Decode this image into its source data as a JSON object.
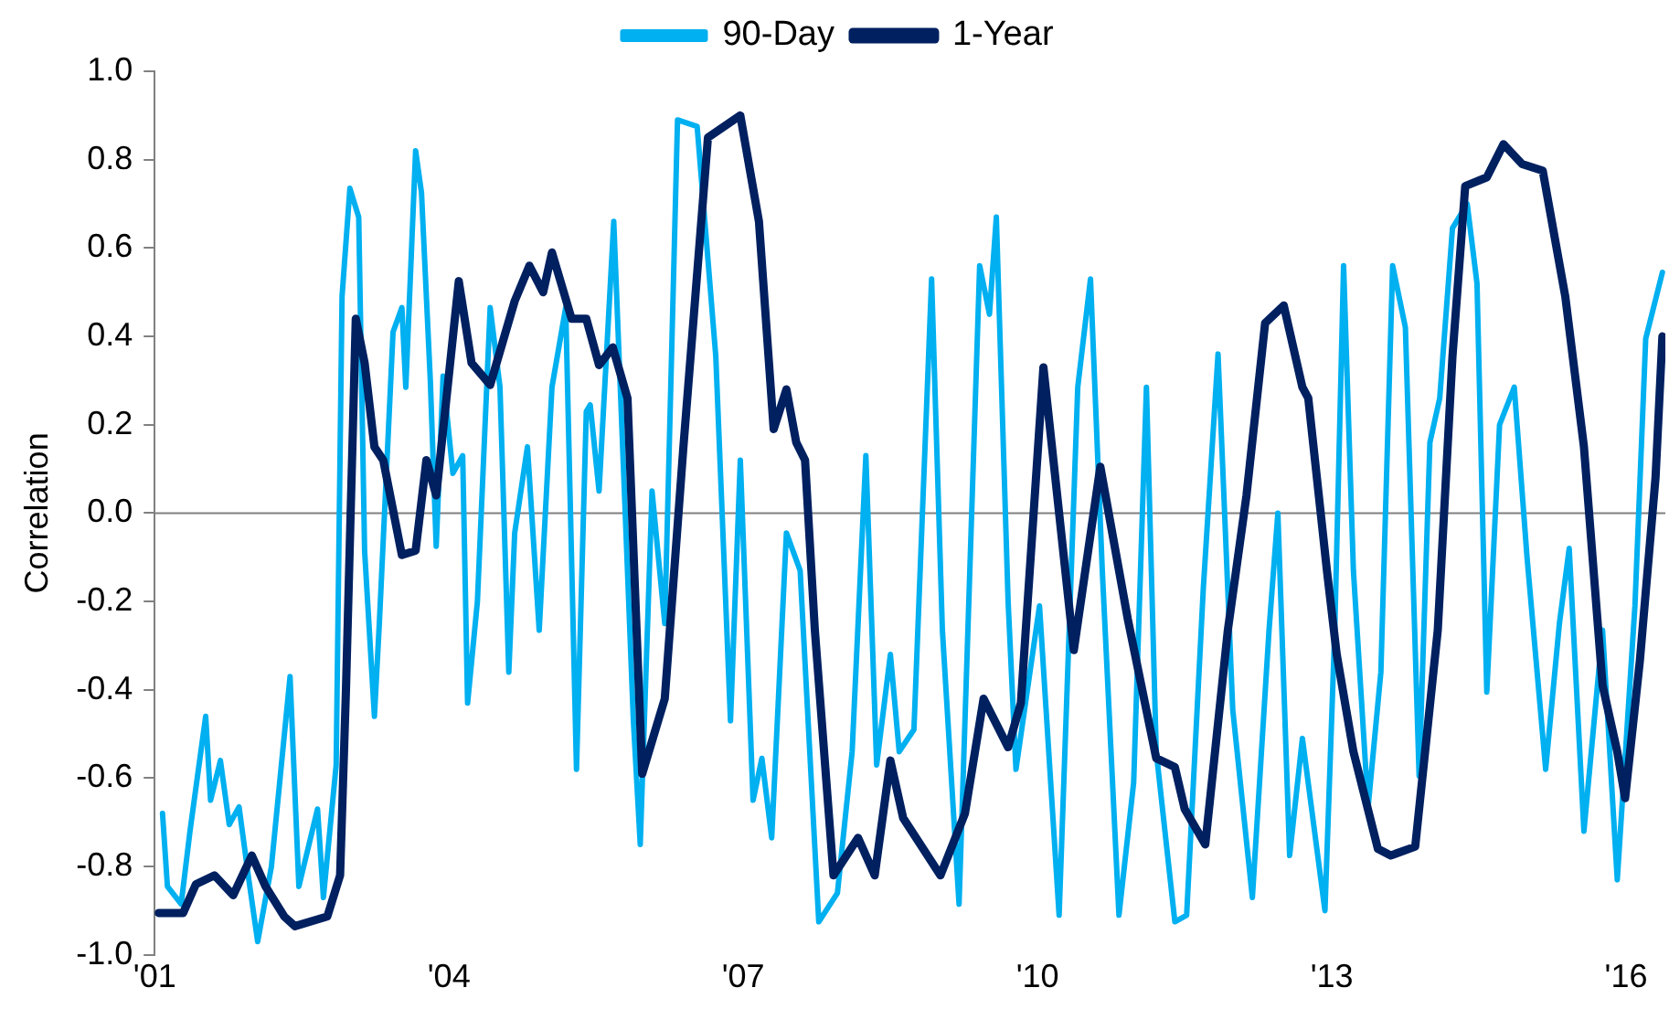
{
  "chart_data": {
    "type": "line",
    "ylabel": "Correlation",
    "legend": "top",
    "marker": "none",
    "line_style": "solid",
    "grid": false,
    "xlim": [
      2001,
      2016.4
    ],
    "xticks": [
      {
        "value": 2001,
        "label": "'01"
      },
      {
        "value": 2004,
        "label": "'04"
      },
      {
        "value": 2007,
        "label": "'07"
      },
      {
        "value": 2010,
        "label": "'10"
      },
      {
        "value": 2013,
        "label": "'13"
      },
      {
        "value": 2016,
        "label": "'16"
      }
    ],
    "ylim": [
      -1,
      1
    ],
    "yticks": [
      {
        "value": -1,
        "label": "-1.0"
      },
      {
        "value": -0.8,
        "label": "-0.8"
      },
      {
        "value": -0.6,
        "label": "-0.6"
      },
      {
        "value": -0.4,
        "label": "-0.4"
      },
      {
        "value": -0.2,
        "label": "-0.2"
      },
      {
        "value": 0,
        "label": "0.0"
      },
      {
        "value": 0.2,
        "label": "0.2"
      },
      {
        "value": 0.4,
        "label": "0.4"
      },
      {
        "value": 0.6,
        "label": "0.6"
      },
      {
        "value": 0.8,
        "label": "0.8"
      },
      {
        "value": 1,
        "label": "1.0"
      }
    ],
    "ref_lines": [
      {
        "axis": "y",
        "value": 0,
        "color": "#808080"
      }
    ],
    "series": [
      {
        "name": "90-Day",
        "color": "#00b0f0",
        "x": [
          2001.08,
          2001.13,
          2001.27,
          2001.36,
          2001.52,
          2001.57,
          2001.67,
          2001.76,
          2001.86,
          2001.96,
          2002.05,
          2002.19,
          2002.38,
          2002.47,
          2002.66,
          2002.72,
          2002.85,
          2002.91,
          2002.99,
          2003.08,
          2003.14,
          2003.24,
          2003.29,
          2003.43,
          2003.52,
          2003.56,
          2003.66,
          2003.72,
          2003.81,
          2003.87,
          2003.94,
          2004.04,
          2004.14,
          2004.19,
          2004.29,
          2004.42,
          2004.52,
          2004.61,
          2004.67,
          2004.8,
          2004.92,
          2005.05,
          2005.19,
          2005.3,
          2005.4,
          2005.44,
          2005.53,
          2005.68,
          2005.88,
          2005.95,
          2006.07,
          2006.2,
          2006.33,
          2006.53,
          2006.72,
          2006.87,
          2006.97,
          2007.1,
          2007.19,
          2007.29,
          2007.44,
          2007.58,
          2007.77,
          2007.96,
          2008.11,
          2008.25,
          2008.36,
          2008.5,
          2008.59,
          2008.74,
          2008.92,
          2009.03,
          2009.2,
          2009.41,
          2009.51,
          2009.58,
          2009.7,
          2009.78,
          2010.02,
          2010.22,
          2010.41,
          2010.54,
          2010.66,
          2010.83,
          2010.98,
          2011.11,
          2011.21,
          2011.4,
          2011.52,
          2011.69,
          2011.84,
          2011.99,
          2012.19,
          2012.36,
          2012.45,
          2012.57,
          2012.7,
          2012.93,
          2013.03,
          2013.12,
          2013.22,
          2013.37,
          2013.5,
          2013.62,
          2013.75,
          2013.89,
          2014.0,
          2014.1,
          2014.23,
          2014.38,
          2014.48,
          2014.58,
          2014.71,
          2014.86,
          2014.99,
          2015.18,
          2015.32,
          2015.42,
          2015.57,
          2015.76,
          2015.91,
          2016.09,
          2016.2,
          2016.37
        ],
        "values": [
          -0.68,
          -0.845,
          -0.885,
          -0.72,
          -0.46,
          -0.65,
          -0.56,
          -0.705,
          -0.665,
          -0.83,
          -0.97,
          -0.8,
          -0.37,
          -0.845,
          -0.67,
          -0.87,
          -0.57,
          0.49,
          0.735,
          0.67,
          -0.085,
          -0.46,
          -0.25,
          0.41,
          0.465,
          0.285,
          0.82,
          0.725,
          0.3,
          -0.075,
          0.31,
          0.09,
          0.13,
          -0.43,
          -0.2,
          0.465,
          0.285,
          -0.36,
          -0.045,
          0.15,
          -0.265,
          0.285,
          0.465,
          -0.58,
          0.23,
          0.245,
          0.05,
          0.66,
          -0.47,
          -0.75,
          0.05,
          -0.25,
          0.89,
          0.875,
          0.355,
          -0.47,
          0.12,
          -0.65,
          -0.555,
          -0.735,
          -0.045,
          -0.13,
          -0.925,
          -0.86,
          -0.54,
          0.13,
          -0.57,
          -0.32,
          -0.54,
          -0.49,
          0.53,
          -0.265,
          -0.885,
          0.56,
          0.45,
          0.67,
          -0.2,
          -0.58,
          -0.21,
          -0.91,
          0.285,
          0.53,
          -0.13,
          -0.91,
          -0.61,
          0.285,
          -0.54,
          -0.925,
          -0.91,
          -0.17,
          0.36,
          -0.445,
          -0.87,
          -0.265,
          0.0,
          -0.775,
          -0.51,
          -0.9,
          -0.265,
          0.56,
          -0.13,
          -0.665,
          -0.36,
          0.56,
          0.42,
          -0.595,
          0.16,
          0.26,
          0.645,
          0.7,
          0.52,
          -0.405,
          0.2,
          0.285,
          -0.1,
          -0.58,
          -0.25,
          -0.08,
          -0.72,
          -0.265,
          -0.83,
          -0.21,
          0.395,
          0.545
        ]
      },
      {
        "name": "1-Year",
        "color": "#002060",
        "x": [
          2001.04,
          2001.29,
          2001.42,
          2001.61,
          2001.8,
          2001.99,
          2002.13,
          2002.32,
          2002.43,
          2002.76,
          2002.89,
          2002.95,
          2003.05,
          2003.14,
          2003.24,
          2003.33,
          2003.52,
          2003.66,
          2003.77,
          2003.87,
          2004.1,
          2004.23,
          2004.42,
          2004.67,
          2004.82,
          2004.96,
          2005.05,
          2005.25,
          2005.4,
          2005.53,
          2005.67,
          2005.82,
          2005.97,
          2006.2,
          2006.39,
          2006.64,
          2006.97,
          2007.16,
          2007.31,
          2007.44,
          2007.54,
          2007.63,
          2007.73,
          2007.92,
          2008.17,
          2008.34,
          2008.5,
          2008.63,
          2009.01,
          2009.26,
          2009.45,
          2009.7,
          2009.83,
          2010.06,
          2010.37,
          2010.64,
          2010.92,
          2011.21,
          2011.4,
          2011.5,
          2011.71,
          2011.94,
          2012.13,
          2012.32,
          2012.51,
          2012.7,
          2012.76,
          2012.95,
          2013.05,
          2013.22,
          2013.47,
          2013.6,
          2013.85,
          2014.08,
          2014.23,
          2014.36,
          2014.58,
          2014.75,
          2014.94,
          2015.15,
          2015.38,
          2015.57,
          2015.76,
          2015.91,
          2015.99,
          2016.14,
          2016.3,
          2016.37
        ],
        "values": [
          -0.905,
          -0.905,
          -0.84,
          -0.82,
          -0.865,
          -0.775,
          -0.845,
          -0.913,
          -0.935,
          -0.913,
          -0.82,
          -0.4,
          0.44,
          0.34,
          0.15,
          0.12,
          -0.095,
          -0.085,
          0.12,
          0.04,
          0.525,
          0.34,
          0.29,
          0.48,
          0.56,
          0.5,
          0.59,
          0.44,
          0.44,
          0.335,
          0.375,
          0.26,
          -0.59,
          -0.42,
          0.15,
          0.85,
          0.9,
          0.66,
          0.19,
          0.28,
          0.16,
          0.12,
          -0.265,
          -0.82,
          -0.735,
          -0.82,
          -0.56,
          -0.69,
          -0.82,
          -0.68,
          -0.42,
          -0.53,
          -0.43,
          0.33,
          -0.31,
          0.105,
          -0.24,
          -0.555,
          -0.575,
          -0.67,
          -0.75,
          -0.265,
          0.04,
          0.43,
          0.47,
          0.285,
          0.26,
          -0.13,
          -0.32,
          -0.54,
          -0.76,
          -0.775,
          -0.755,
          -0.265,
          0.355,
          0.74,
          0.76,
          0.835,
          0.79,
          0.775,
          0.49,
          0.15,
          -0.39,
          -0.54,
          -0.645,
          -0.335,
          0.08,
          0.4
        ]
      }
    ]
  }
}
